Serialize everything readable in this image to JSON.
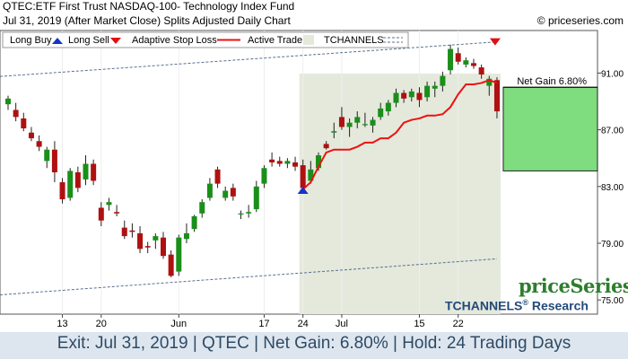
{
  "header": {
    "title": "QTEC:ETF First Trust NASDAQ-100- Technology Index Fund",
    "subtitle": "Jul 31, 2019 (After Market Close)  Splits Adjusted Daily Chart",
    "copyright": "© priceseries.com"
  },
  "legend": {
    "long_buy": "Long Buy",
    "long_sell": "Long Sell",
    "stop": "Adaptive Stop Loss",
    "active_trade": "Active Trade",
    "tchannels": "TCHANNELS"
  },
  "net_gain_label": "Net Gain 6.80%",
  "brand": {
    "name": "priceSeries",
    "research": "TCHANNELS",
    "research_suffix": "Research",
    "reg": "®"
  },
  "footer": "Exit: Jul 31, 2019 | QTEC | Net Gain: 6.80% | Hold: 24 Trading Days",
  "colors": {
    "up": "#1a8f1a",
    "down": "#b01010",
    "stop": "#ee1111",
    "trade_bg": "#e4e9dc",
    "gain_box": "#7fdc7f",
    "channel": "#5a6f8f"
  },
  "chart_data": {
    "type": "candlestick",
    "ylim": [
      74,
      94
    ],
    "y_ticks": [
      75,
      79,
      83,
      87,
      91
    ],
    "y_tick_labels": [
      "75.00",
      "79.00",
      "83.00",
      "87.00",
      "91.00"
    ],
    "x_tick_labels": [
      "13",
      "20",
      "Jun",
      "17",
      "24",
      "Jul",
      "15",
      "22"
    ],
    "x_tick_bar_index": [
      7,
      12,
      22,
      33,
      38,
      43,
      53,
      58
    ],
    "candles": [
      {
        "o": 88.8,
        "h": 89.4,
        "l": 88.4,
        "c": 89.2
      },
      {
        "o": 88.4,
        "h": 88.9,
        "l": 87.6,
        "c": 87.9
      },
      {
        "o": 87.8,
        "h": 88.2,
        "l": 86.9,
        "c": 87.1
      },
      {
        "o": 86.8,
        "h": 87.2,
        "l": 86.2,
        "c": 86.4
      },
      {
        "o": 86.2,
        "h": 86.6,
        "l": 85.5,
        "c": 85.8
      },
      {
        "o": 84.8,
        "h": 85.8,
        "l": 84.3,
        "c": 85.6
      },
      {
        "o": 85.6,
        "h": 86.2,
        "l": 83.3,
        "c": 84.0
      },
      {
        "o": 83.3,
        "h": 83.6,
        "l": 81.8,
        "c": 82.1
      },
      {
        "o": 82.2,
        "h": 84.3,
        "l": 82.0,
        "c": 84.1
      },
      {
        "o": 84.0,
        "h": 84.4,
        "l": 82.6,
        "c": 82.9
      },
      {
        "o": 83.5,
        "h": 85.2,
        "l": 83.1,
        "c": 84.6
      },
      {
        "o": 84.6,
        "h": 84.9,
        "l": 83.1,
        "c": 83.4
      },
      {
        "o": 81.5,
        "h": 81.9,
        "l": 80.2,
        "c": 80.6
      },
      {
        "o": 81.7,
        "h": 82.2,
        "l": 81.3,
        "c": 81.9
      },
      {
        "o": 81.2,
        "h": 81.7,
        "l": 80.9,
        "c": 81.1
      },
      {
        "o": 80.1,
        "h": 80.6,
        "l": 79.3,
        "c": 79.5
      },
      {
        "o": 79.9,
        "h": 80.4,
        "l": 79.4,
        "c": 79.8
      },
      {
        "o": 79.7,
        "h": 80.2,
        "l": 78.3,
        "c": 78.6
      },
      {
        "o": 78.8,
        "h": 79.1,
        "l": 78.3,
        "c": 78.7
      },
      {
        "o": 79.2,
        "h": 79.7,
        "l": 78.6,
        "c": 79.5
      },
      {
        "o": 79.4,
        "h": 79.8,
        "l": 77.9,
        "c": 78.1
      },
      {
        "o": 78.2,
        "h": 78.5,
        "l": 76.6,
        "c": 76.7
      },
      {
        "o": 77.0,
        "h": 79.6,
        "l": 76.7,
        "c": 79.4
      },
      {
        "o": 79.3,
        "h": 80.4,
        "l": 79.0,
        "c": 79.7
      },
      {
        "o": 80.0,
        "h": 81.0,
        "l": 79.8,
        "c": 80.9
      },
      {
        "o": 81.1,
        "h": 82.1,
        "l": 80.8,
        "c": 81.9
      },
      {
        "o": 82.2,
        "h": 83.6,
        "l": 82.0,
        "c": 83.2
      },
      {
        "o": 84.2,
        "h": 84.4,
        "l": 82.9,
        "c": 83.2
      },
      {
        "o": 82.2,
        "h": 83.0,
        "l": 82.0,
        "c": 82.7
      },
      {
        "o": 82.9,
        "h": 83.2,
        "l": 82.0,
        "c": 82.3
      },
      {
        "o": 81.1,
        "h": 81.3,
        "l": 80.7,
        "c": 81.1
      },
      {
        "o": 81.1,
        "h": 81.7,
        "l": 80.8,
        "c": 81.2
      },
      {
        "o": 81.4,
        "h": 83.4,
        "l": 81.2,
        "c": 83.0
      },
      {
        "o": 83.2,
        "h": 84.5,
        "l": 82.9,
        "c": 84.3
      },
      {
        "o": 84.9,
        "h": 85.4,
        "l": 84.4,
        "c": 84.7
      },
      {
        "o": 84.8,
        "h": 85.1,
        "l": 84.4,
        "c": 84.6
      },
      {
        "o": 84.6,
        "h": 85.0,
        "l": 84.3,
        "c": 84.8
      },
      {
        "o": 84.7,
        "h": 85.1,
        "l": 84.1,
        "c": 84.4
      },
      {
        "o": 84.5,
        "h": 84.9,
        "l": 82.6,
        "c": 82.9
      },
      {
        "o": 83.4,
        "h": 84.8,
        "l": 83.2,
        "c": 84.2
      },
      {
        "o": 84.3,
        "h": 85.4,
        "l": 84.1,
        "c": 85.2
      },
      {
        "o": 86.0,
        "h": 86.2,
        "l": 85.6,
        "c": 85.7
      },
      {
        "o": 86.8,
        "h": 87.5,
        "l": 86.4,
        "c": 86.9
      },
      {
        "o": 87.9,
        "h": 88.6,
        "l": 87.0,
        "c": 87.2
      },
      {
        "o": 87.2,
        "h": 87.8,
        "l": 86.5,
        "c": 87.5
      },
      {
        "o": 87.5,
        "h": 88.3,
        "l": 87.1,
        "c": 87.9
      },
      {
        "o": 87.4,
        "h": 88.2,
        "l": 87.2,
        "c": 87.4
      },
      {
        "o": 87.3,
        "h": 87.9,
        "l": 86.8,
        "c": 87.7
      },
      {
        "o": 87.9,
        "h": 88.9,
        "l": 87.7,
        "c": 88.5
      },
      {
        "o": 88.3,
        "h": 89.1,
        "l": 88.0,
        "c": 88.9
      },
      {
        "o": 88.9,
        "h": 89.9,
        "l": 88.6,
        "c": 89.6
      },
      {
        "o": 89.6,
        "h": 89.8,
        "l": 88.9,
        "c": 89.2
      },
      {
        "o": 89.3,
        "h": 89.9,
        "l": 89.0,
        "c": 89.7
      },
      {
        "o": 89.6,
        "h": 90.0,
        "l": 88.6,
        "c": 89.1
      },
      {
        "o": 89.3,
        "h": 90.4,
        "l": 89.0,
        "c": 90.1
      },
      {
        "o": 89.9,
        "h": 90.4,
        "l": 89.3,
        "c": 90.1
      },
      {
        "o": 90.1,
        "h": 91.1,
        "l": 89.7,
        "c": 90.8
      },
      {
        "o": 91.2,
        "h": 93.0,
        "l": 90.9,
        "c": 92.7
      },
      {
        "o": 92.4,
        "h": 92.8,
        "l": 91.6,
        "c": 91.8
      },
      {
        "o": 91.6,
        "h": 92.1,
        "l": 91.4,
        "c": 91.9
      },
      {
        "o": 91.7,
        "h": 92.0,
        "l": 91.3,
        "c": 91.5
      },
      {
        "o": 91.4,
        "h": 91.6,
        "l": 90.6,
        "c": 90.9
      },
      {
        "o": 90.1,
        "h": 90.8,
        "l": 89.4,
        "c": 90.6
      },
      {
        "o": 90.5,
        "h": 90.7,
        "l": 87.8,
        "c": 88.3
      }
    ],
    "stop_line": [
      {
        "i": 38,
        "v": 82.8
      },
      {
        "i": 39,
        "v": 83.3
      },
      {
        "i": 40,
        "v": 84.4
      },
      {
        "i": 41,
        "v": 85.4
      },
      {
        "i": 42,
        "v": 85.6
      },
      {
        "i": 43,
        "v": 85.6
      },
      {
        "i": 44,
        "v": 85.6
      },
      {
        "i": 45,
        "v": 85.8
      },
      {
        "i": 46,
        "v": 86.1
      },
      {
        "i": 47,
        "v": 86.1
      },
      {
        "i": 48,
        "v": 86.4
      },
      {
        "i": 49,
        "v": 86.4
      },
      {
        "i": 50,
        "v": 86.8
      },
      {
        "i": 51,
        "v": 87.5
      },
      {
        "i": 52,
        "v": 87.7
      },
      {
        "i": 53,
        "v": 87.8
      },
      {
        "i": 54,
        "v": 88.0
      },
      {
        "i": 55,
        "v": 88.0
      },
      {
        "i": 56,
        "v": 88.1
      },
      {
        "i": 57,
        "v": 88.6
      },
      {
        "i": 58,
        "v": 89.5
      },
      {
        "i": 59,
        "v": 90.2
      },
      {
        "i": 60,
        "v": 90.2
      },
      {
        "i": 61,
        "v": 90.3
      },
      {
        "i": 62,
        "v": 90.5
      },
      {
        "i": 63,
        "v": 90.3
      }
    ],
    "channel_upper": {
      "i0": 0,
      "v0": 90.8,
      "i1": 63,
      "v1": 93.2
    },
    "channel_lower": {
      "i0": 0,
      "v0": 75.4,
      "i1": 63,
      "v1": 77.9
    },
    "trade": {
      "entry_index": 38,
      "exit_index": 63,
      "entry_price": 82.8,
      "exit_price": 88.4
    },
    "gain_box": {
      "low": 84.1,
      "high": 90.0
    },
    "net_gain_level": 90.0
  }
}
